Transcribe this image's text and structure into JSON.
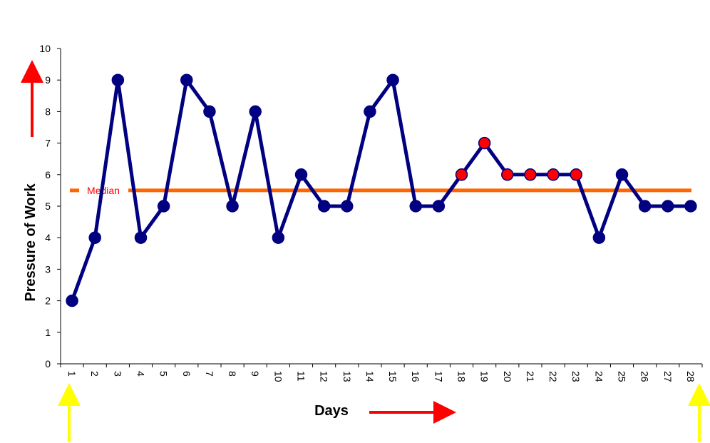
{
  "chart_data": {
    "type": "line",
    "xlabel": "Days",
    "ylabel": "Pressure of Work",
    "ylim": [
      0,
      10
    ],
    "yticks": [
      "0",
      "1",
      "2",
      "3",
      "4",
      "5",
      "6",
      "7",
      "8",
      "9",
      "10"
    ],
    "categories": [
      "1",
      "2",
      "3",
      "4",
      "5",
      "6",
      "7",
      "8",
      "9",
      "10",
      "11",
      "12",
      "13",
      "14",
      "15",
      "16",
      "17",
      "18",
      "19",
      "20",
      "21",
      "22",
      "23",
      "24",
      "25",
      "26",
      "27",
      "28"
    ],
    "series": [
      {
        "values": [
          2,
          4,
          9,
          4,
          5,
          9,
          8,
          5,
          8,
          4,
          6,
          5,
          5,
          8,
          9,
          5,
          5,
          6,
          7,
          6,
          6,
          6,
          6,
          4,
          6,
          5,
          5,
          5
        ],
        "highlighted_days": [
          "18",
          "19",
          "20",
          "21",
          "22",
          "23"
        ]
      }
    ],
    "median": {
      "label": "Median",
      "value": 5.5
    },
    "grid": false,
    "colors": {
      "line": "#000080",
      "marker": "#000080",
      "highlight_marker": "#ff0000",
      "median_line": "#ff6600",
      "median_text": "#ff0000",
      "arrow_red": "#ff0000",
      "arrow_yellow": "#ffff00"
    }
  }
}
